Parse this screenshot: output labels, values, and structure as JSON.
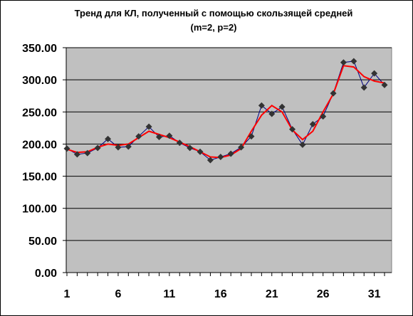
{
  "chart_data": {
    "type": "line",
    "title_line1": "Тренд для КЛ, полученный с помощью скользящей средней",
    "title_line2": "(m=2, p=2)",
    "xlabel": "",
    "ylabel": "",
    "xlim": [
      1,
      32
    ],
    "ylim": [
      0,
      350
    ],
    "grid": true,
    "y_ticks": [
      "0.00",
      "50.00",
      "100.00",
      "150.00",
      "200.00",
      "250.00",
      "300.00",
      "350.00"
    ],
    "x_ticks": [
      "1",
      "6",
      "11",
      "16",
      "21",
      "26",
      "31"
    ],
    "x": [
      1,
      2,
      3,
      4,
      5,
      6,
      7,
      8,
      9,
      10,
      11,
      12,
      13,
      14,
      15,
      16,
      17,
      18,
      19,
      20,
      21,
      22,
      23,
      24,
      25,
      26,
      27,
      28,
      29,
      30,
      31,
      32
    ],
    "series": [
      {
        "role": "observed",
        "values": [
          193,
          184,
          186,
          194,
          208,
          195,
          196,
          212,
          227,
          211,
          213,
          202,
          194,
          188,
          175,
          180,
          185,
          195,
          212,
          260,
          247,
          258,
          223,
          199,
          231,
          243,
          279,
          327,
          329,
          288,
          310,
          292
        ]
      },
      {
        "role": "moving_average",
        "values": [
          192,
          187,
          188,
          195,
          200,
          198,
          200,
          210,
          220,
          215,
          210,
          203,
          196,
          188,
          180,
          179,
          183,
          193,
          220,
          245,
          260,
          250,
          222,
          207,
          220,
          250,
          278,
          322,
          320,
          305,
          298,
          295
        ]
      }
    ],
    "colors": {
      "plot_background": "#c0c0c0",
      "observed_line": "#000080",
      "observed_marker": "#333333",
      "trend_line": "#ff0000",
      "gridline": "#000000"
    }
  }
}
